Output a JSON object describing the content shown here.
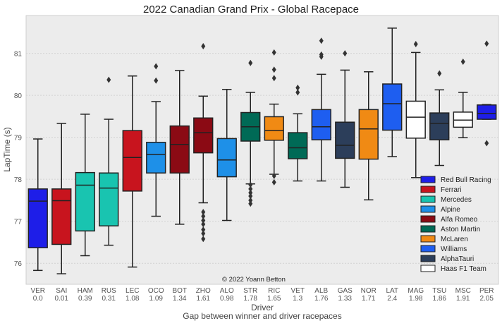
{
  "chart_data": {
    "type": "boxplot",
    "title": "2022 Canadian Grand Prix - Global Racepace",
    "xlabel": "Driver",
    "xlabel2": "Gap between winner and driver racepaces",
    "ylabel": "LapTime (s)",
    "ylim": [
      75.5,
      81.9
    ],
    "yticks": [
      76,
      77,
      78,
      79,
      80,
      81
    ],
    "grid": true,
    "legend_position": "bottom-right",
    "watermark": "© 2022 Yoann Betton",
    "team_colors": {
      "Red Bull Racing": "#1e1ee8",
      "Ferrari": "#c8141e",
      "Mercedes": "#19c4b0",
      "Alpine": "#1e90e8",
      "Alfa Romeo": "#8b0a14",
      "Aston Martin": "#006a56",
      "McLaren": "#f08a14",
      "Williams": "#1e5ef0",
      "AlphaTauri": "#2c3e5a",
      "Haas F1 Team": "#ffffff"
    },
    "legend": [
      "Red Bull Racing",
      "Ferrari",
      "Mercedes",
      "Alpine",
      "Alfa Romeo",
      "Aston Martin",
      "McLaren",
      "Williams",
      "AlphaTauri",
      "Haas F1 Team"
    ],
    "drivers": [
      {
        "driver": "VER",
        "gap": "0.0",
        "team": "Red Bull Racing",
        "whisker_low": 75.83,
        "q1": 76.37,
        "median": 77.48,
        "q3": 77.77,
        "whisker_high": 78.96,
        "outliers": []
      },
      {
        "driver": "SAI",
        "gap": "0.01",
        "team": "Ferrari",
        "whisker_low": 75.75,
        "q1": 76.45,
        "median": 77.49,
        "q3": 77.77,
        "whisker_high": 79.33,
        "outliers": []
      },
      {
        "driver": "HAM",
        "gap": "0.39",
        "team": "Mercedes",
        "whisker_low": 76.18,
        "q1": 76.77,
        "median": 77.86,
        "q3": 78.16,
        "whisker_high": 79.55,
        "outliers": []
      },
      {
        "driver": "RUS",
        "gap": "0.31",
        "team": "Mercedes",
        "whisker_low": 76.43,
        "q1": 76.89,
        "median": 77.79,
        "q3": 78.15,
        "whisker_high": 79.43,
        "outliers": [
          80.37
        ]
      },
      {
        "driver": "LEC",
        "gap": "1.08",
        "team": "Ferrari",
        "whisker_low": 75.91,
        "q1": 77.72,
        "median": 78.52,
        "q3": 79.16,
        "whisker_high": 80.46,
        "outliers": []
      },
      {
        "driver": "OCO",
        "gap": "1.09",
        "team": "Alpine",
        "whisker_low": 77.12,
        "q1": 78.15,
        "median": 78.59,
        "q3": 78.88,
        "whisker_high": 79.85,
        "outliers": [
          80.35,
          80.69
        ]
      },
      {
        "driver": "BOT",
        "gap": "1.34",
        "team": "Alfa Romeo",
        "whisker_low": 76.93,
        "q1": 78.15,
        "median": 78.83,
        "q3": 79.27,
        "whisker_high": 80.59,
        "outliers": []
      },
      {
        "driver": "ZHO",
        "gap": "1.61",
        "team": "Alfa Romeo",
        "whisker_low": 77.44,
        "q1": 78.63,
        "median": 79.11,
        "q3": 79.46,
        "whisker_high": 79.98,
        "outliers": [
          81.17,
          77.22,
          77.12,
          77.02,
          76.93,
          76.8,
          76.71,
          76.58
        ]
      },
      {
        "driver": "ALO",
        "gap": "0.98",
        "team": "Alpine",
        "whisker_low": 77.02,
        "q1": 78.06,
        "median": 78.46,
        "q3": 78.97,
        "whisker_high": 80.14,
        "outliers": []
      },
      {
        "driver": "STR",
        "gap": "1.78",
        "team": "Aston Martin",
        "whisker_low": 77.89,
        "q1": 78.91,
        "median": 79.25,
        "q3": 79.59,
        "whisker_high": 80.07,
        "outliers": [
          80.77,
          77.87,
          77.77,
          77.68,
          77.6,
          77.5,
          77.42
        ]
      },
      {
        "driver": "RIC",
        "gap": "1.65",
        "team": "McLaren",
        "whisker_low": 78.12,
        "q1": 78.93,
        "median": 79.16,
        "q3": 79.49,
        "whisker_high": 79.79,
        "outliers": [
          81.02,
          80.61,
          80.41,
          78.08,
          77.93
        ]
      },
      {
        "driver": "VET",
        "gap": "1.3",
        "team": "Aston Martin",
        "whisker_low": 77.96,
        "q1": 78.49,
        "median": 78.75,
        "q3": 79.11,
        "whisker_high": 79.56,
        "outliers": [
          80.18,
          80.07
        ]
      },
      {
        "driver": "ALB",
        "gap": "1.76",
        "team": "Williams",
        "whisker_low": 77.96,
        "q1": 78.94,
        "median": 79.25,
        "q3": 79.66,
        "whisker_high": 80.5,
        "outliers": [
          81.3,
          80.97,
          80.92
        ]
      },
      {
        "driver": "GAS",
        "gap": "1.33",
        "team": "AlphaTauri",
        "whisker_low": 77.81,
        "q1": 78.5,
        "median": 78.81,
        "q3": 79.36,
        "whisker_high": 80.6,
        "outliers": [
          81.0
        ]
      },
      {
        "driver": "NOR",
        "gap": "1.71",
        "team": "McLaren",
        "whisker_low": 77.51,
        "q1": 78.48,
        "median": 79.2,
        "q3": 79.66,
        "whisker_high": 80.56,
        "outliers": []
      },
      {
        "driver": "LAT",
        "gap": "2.4",
        "team": "Williams",
        "whisker_low": 78.54,
        "q1": 79.17,
        "median": 79.8,
        "q3": 80.27,
        "whisker_high": 81.6,
        "outliers": []
      },
      {
        "driver": "MAG",
        "gap": "1.98",
        "team": "Haas F1 Team",
        "whisker_low": 78.04,
        "q1": 78.98,
        "median": 79.48,
        "q3": 79.86,
        "whisker_high": 81.02,
        "outliers": [
          81.22
        ]
      },
      {
        "driver": "TSU",
        "gap": "1.86",
        "team": "AlphaTauri",
        "whisker_low": 78.33,
        "q1": 78.94,
        "median": 79.33,
        "q3": 79.58,
        "whisker_high": 80.13,
        "outliers": [
          80.52
        ]
      },
      {
        "driver": "MSC",
        "gap": "1.91",
        "team": "Haas F1 Team",
        "whisker_low": 78.99,
        "q1": 79.24,
        "median": 79.41,
        "q3": 79.6,
        "whisker_high": 80.07,
        "outliers": [
          80.8
        ]
      },
      {
        "driver": "PER",
        "gap": "2.05",
        "team": "Red Bull Racing",
        "whisker_low": 79.43,
        "q1": 79.43,
        "median": 79.57,
        "q3": 79.77,
        "whisker_high": 79.78,
        "outliers": [
          81.23,
          78.86
        ]
      }
    ]
  }
}
